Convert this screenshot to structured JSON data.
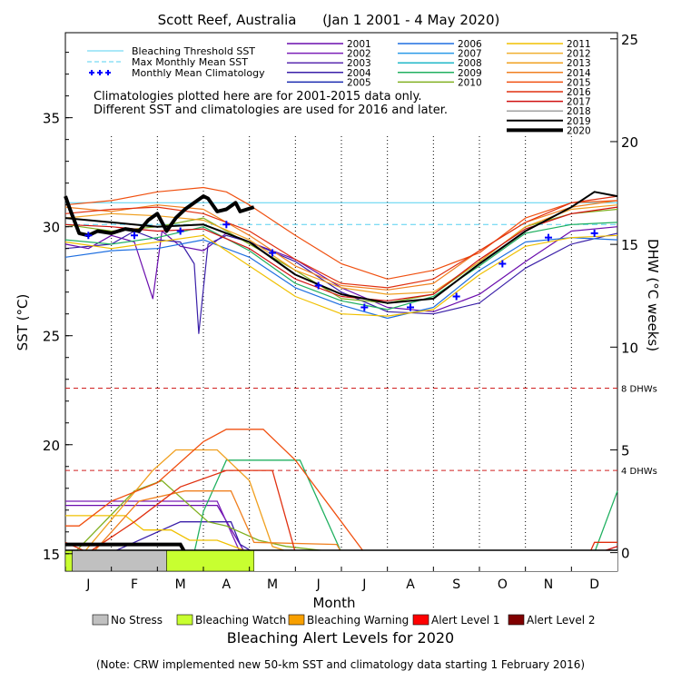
{
  "chart_data": {
    "type": "line",
    "title": "Scott Reef, Australia      (Jan 1 2001 - 4 May 2020)",
    "xlabel": "Month",
    "ylabel_left": "SST (°C)",
    "ylabel_right": "DHW (°C weeks)",
    "x_ticks": [
      "J",
      "F",
      "M",
      "A",
      "M",
      "J",
      "J",
      "A",
      "S",
      "O",
      "N",
      "D"
    ],
    "y_left_ticks": [
      15,
      20,
      25,
      30,
      35
    ],
    "y_left_range": [
      14.2,
      38.9
    ],
    "y_right_ticks": [
      0,
      5,
      10,
      15,
      20,
      25
    ],
    "y_right_range": [
      -0.9,
      25.3
    ],
    "bleaching_threshold_sst": 31.1,
    "max_monthly_mean_sst": 30.1,
    "dhw_lines": [
      {
        "label": "8 DHWs",
        "value": 8
      },
      {
        "label": "4 DHWs",
        "value": 4
      }
    ],
    "climatology_note_1": "Climatologies plotted here are for 2001-2015 data only.",
    "climatology_note_2": "Different SST and climatologies are used for 2016 and later.",
    "legend_refs": [
      {
        "name": "Bleaching Threshold SST",
        "color": "#55d0f0",
        "style": "solid"
      },
      {
        "name": "Max Monthly Mean SST",
        "color": "#55d0f0",
        "style": "dashed"
      },
      {
        "name": "Monthly Mean Climatology",
        "color": "#0000ff",
        "style": "plus"
      }
    ],
    "year_legend": [
      {
        "name": "2001",
        "color": "#6a0dad"
      },
      {
        "name": "2002",
        "color": "#7b1fb8"
      },
      {
        "name": "2003",
        "color": "#5a2bb0"
      },
      {
        "name": "2004",
        "color": "#3a1fa8"
      },
      {
        "name": "2005",
        "color": "#1a2ab0"
      },
      {
        "name": "2006",
        "color": "#1f6fe0"
      },
      {
        "name": "2007",
        "color": "#2a9ae8"
      },
      {
        "name": "2008",
        "color": "#20b8c8"
      },
      {
        "name": "2009",
        "color": "#20b060"
      },
      {
        "name": "2010",
        "color": "#80b020"
      },
      {
        "name": "2011",
        "color": "#f0c000"
      },
      {
        "name": "2012",
        "color": "#f0b030"
      },
      {
        "name": "2013",
        "color": "#f0a020"
      },
      {
        "name": "2014",
        "color": "#f08020"
      },
      {
        "name": "2015",
        "color": "#f05010"
      },
      {
        "name": "2016",
        "color": "#e03010"
      },
      {
        "name": "2017",
        "color": "#d01010"
      },
      {
        "name": "2018",
        "color": "#a0a0a0"
      },
      {
        "name": "2019",
        "color": "#000000"
      },
      {
        "name": "2020",
        "color": "#000000"
      }
    ],
    "climatology": {
      "x": [
        0.5,
        1.5,
        2.5,
        3.5,
        4.5,
        5.5,
        6.5,
        7.5,
        8.5,
        9.5,
        10.5,
        11.5
      ],
      "values": [
        29.6,
        29.6,
        29.8,
        30.1,
        28.8,
        27.3,
        26.3,
        26.3,
        26.8,
        28.3,
        29.5,
        29.7
      ]
    },
    "series": [
      {
        "name": "2001",
        "x": [
          0,
          0.5,
          1,
          1.5,
          1.9,
          2.1,
          2.5,
          3,
          3.5,
          4,
          5,
          6,
          7,
          8,
          9,
          10,
          11,
          12
        ],
        "values": [
          29.2,
          29.0,
          29.6,
          29.3,
          26.7,
          29.8,
          29.1,
          28.9,
          29.7,
          29.3,
          28.5,
          27.2,
          26.3,
          26.1,
          26.9,
          28.4,
          29.8,
          30.0
        ]
      },
      {
        "name": "2004",
        "x": [
          0,
          0.5,
          1,
          1.5,
          2,
          2.5,
          2.8,
          2.9,
          3.1,
          3.5,
          4,
          5,
          6,
          7,
          8,
          9,
          10,
          11,
          12
        ],
        "values": [
          29.0,
          29.1,
          29.2,
          29.8,
          29.4,
          29.3,
          28.3,
          25.1,
          29.2,
          29.6,
          29.3,
          28.4,
          27.0,
          26.1,
          26.0,
          26.5,
          28.1,
          29.2,
          29.7
        ]
      },
      {
        "name": "2006",
        "x": [
          0,
          1,
          2,
          3,
          4,
          5,
          6,
          7,
          8,
          9,
          10,
          11,
          12
        ],
        "values": [
          28.6,
          28.9,
          29.0,
          29.4,
          28.6,
          27.2,
          26.4,
          25.8,
          26.3,
          28.0,
          29.3,
          29.5,
          29.4
        ]
      },
      {
        "name": "2009",
        "x": [
          0,
          1,
          2,
          3,
          4,
          5,
          6,
          7,
          8,
          9,
          10,
          11,
          12
        ],
        "values": [
          29.4,
          29.2,
          29.5,
          30.0,
          28.9,
          27.4,
          26.6,
          26.2,
          26.8,
          28.2,
          29.7,
          30.1,
          30.2
        ]
      },
      {
        "name": "2010",
        "x": [
          0,
          1,
          2,
          3,
          4,
          5,
          6,
          7,
          8,
          9,
          10,
          11,
          12
        ],
        "values": [
          30.1,
          29.8,
          30.0,
          30.4,
          29.2,
          28.0,
          26.7,
          26.5,
          26.9,
          28.4,
          30.0,
          30.6,
          30.8
        ]
      },
      {
        "name": "2011",
        "x": [
          0,
          1,
          2,
          3,
          4,
          5,
          6,
          7,
          8,
          9,
          10,
          11,
          12
        ],
        "values": [
          29.3,
          29.0,
          29.3,
          29.6,
          28.2,
          26.8,
          26.0,
          25.9,
          26.2,
          27.8,
          29.1,
          29.5,
          29.6
        ]
      },
      {
        "name": "2013",
        "x": [
          0,
          1,
          2,
          3,
          4,
          5,
          6,
          7,
          8,
          9,
          10,
          11,
          12
        ],
        "values": [
          30.4,
          30.6,
          30.5,
          30.3,
          29.4,
          28.0,
          27.2,
          26.9,
          27.0,
          28.4,
          30.0,
          30.8,
          31.0
        ]
      },
      {
        "name": "2014",
        "x": [
          0,
          1,
          2,
          3,
          4,
          5,
          6,
          7,
          8,
          9,
          10,
          11,
          12
        ],
        "values": [
          30.9,
          30.7,
          31.0,
          30.8,
          29.6,
          28.2,
          27.3,
          27.1,
          27.4,
          28.9,
          30.2,
          30.9,
          31.2
        ]
      },
      {
        "name": "2015",
        "x": [
          0,
          1,
          2,
          3,
          3.5,
          4,
          5,
          6,
          7,
          8,
          9,
          10,
          11,
          12
        ],
        "values": [
          31.0,
          31.2,
          31.6,
          31.8,
          31.6,
          31.0,
          29.6,
          28.3,
          27.6,
          28.0,
          28.8,
          30.4,
          31.1,
          31.2
        ]
      },
      {
        "name": "2016",
        "x": [
          0,
          1,
          2,
          3,
          4,
          5,
          6,
          7,
          8,
          9,
          10,
          11,
          12
        ],
        "values": [
          30.6,
          30.8,
          30.9,
          30.6,
          29.8,
          28.5,
          27.4,
          27.2,
          27.6,
          28.9,
          30.2,
          31.1,
          31.4
        ]
      },
      {
        "name": "2017",
        "x": [
          0,
          1,
          2,
          3,
          4,
          5,
          6,
          7,
          8,
          9,
          10,
          11,
          12
        ],
        "values": [
          30.1,
          30.0,
          29.8,
          29.9,
          29.0,
          27.6,
          26.8,
          26.6,
          26.9,
          28.5,
          29.9,
          30.6,
          30.9
        ]
      },
      {
        "name": "2019",
        "x": [
          0,
          1,
          2,
          3,
          4,
          5,
          6,
          7,
          8,
          9,
          10,
          11,
          11.5,
          12
        ],
        "values": [
          30.4,
          30.2,
          30.0,
          30.1,
          29.3,
          27.8,
          26.9,
          26.5,
          26.7,
          28.3,
          29.8,
          30.9,
          31.6,
          31.4
        ]
      },
      {
        "name": "2020",
        "x": [
          0,
          0.1,
          0.3,
          0.5,
          0.7,
          1,
          1.3,
          1.6,
          1.8,
          2,
          2.2,
          2.4,
          2.6,
          2.8,
          3,
          3.1,
          3.3,
          3.5,
          3.7,
          3.8,
          4.1
        ],
        "values": [
          31.4,
          30.8,
          29.7,
          29.6,
          29.8,
          29.7,
          29.9,
          29.8,
          30.3,
          30.6,
          29.8,
          30.4,
          30.8,
          31.1,
          31.4,
          31.3,
          30.7,
          30.8,
          31.1,
          30.7,
          30.9
        ]
      }
    ],
    "dhw_series": [
      {
        "name": "2001",
        "x": [
          0,
          0.2,
          2,
          3,
          3.3,
          3.9
        ],
        "values": [
          2.3,
          2.3,
          2.3,
          2.3,
          2.3,
          0
        ]
      },
      {
        "name": "2002",
        "x": [
          0,
          0.3,
          2.2,
          3.3,
          3.8
        ],
        "values": [
          2.5,
          2.5,
          2.5,
          2.5,
          0
        ]
      },
      {
        "name": "2004",
        "x": [
          0,
          1,
          2.5,
          3.6,
          3.8,
          4.1
        ],
        "values": [
          0,
          0,
          1.5,
          1.5,
          0.4,
          0
        ]
      },
      {
        "name": "2009",
        "x": [
          2.8,
          3,
          3.5,
          4.5,
          5.1,
          6,
          11.5,
          12
        ],
        "values": [
          0,
          2,
          4.5,
          4.5,
          4.5,
          0,
          0,
          3
        ]
      },
      {
        "name": "2010",
        "x": [
          0,
          0.2,
          1.5,
          2.1,
          3.1,
          3.5,
          4.2,
          4.8,
          6
        ],
        "values": [
          0,
          0,
          3,
          3.5,
          1.5,
          1.3,
          0.6,
          0.3,
          0
        ]
      },
      {
        "name": "2011",
        "x": [
          0,
          1.3,
          1.7,
          2.3,
          2.7,
          3.3,
          3.9,
          4.1
        ],
        "values": [
          1.8,
          1.8,
          1.1,
          1.1,
          0.6,
          0.6,
          0.1,
          0
        ]
      },
      {
        "name": "2013",
        "x": [
          0,
          0.4,
          1.9,
          2.4,
          3.3,
          4,
          4.5,
          4.9
        ],
        "values": [
          0,
          0,
          4,
          5,
          5,
          3.5,
          0.3,
          0
        ]
      },
      {
        "name": "2014",
        "x": [
          0,
          0.6,
          1.6,
          2.6,
          3.6,
          4.1,
          5.9,
          6
        ],
        "values": [
          0,
          0,
          2.5,
          3,
          3,
          0.5,
          0.4,
          0
        ]
      },
      {
        "name": "2015",
        "x": [
          0,
          0.3,
          1,
          2,
          3,
          3.5,
          4.3,
          5,
          6.5
        ],
        "values": [
          1.3,
          1.3,
          2.5,
          3.4,
          5.4,
          6,
          6,
          4.5,
          0
        ]
      },
      {
        "name": "2016",
        "x": [
          0,
          0.5,
          1.5,
          2.5,
          3.5,
          4.5,
          5,
          11.4,
          11.5,
          12
        ],
        "values": [
          0.5,
          0,
          1.5,
          3.2,
          4,
          4,
          0,
          0,
          0.5,
          0.5
        ]
      },
      {
        "name": "2017",
        "x": [
          0,
          11.6,
          12
        ],
        "values": [
          0,
          0,
          0.3
        ]
      },
      {
        "name": "2019",
        "x": [
          0,
          12
        ],
        "values": [
          0,
          0
        ]
      },
      {
        "name": "2020",
        "x": [
          0,
          2.5,
          2.6
        ],
        "values": [
          0.4,
          0.4,
          0
        ]
      }
    ],
    "alert_bar": {
      "title": "Bleaching Alert Levels for 2020",
      "segments": [
        {
          "level": "Bleaching Watch",
          "x0": 0,
          "x1": 0.15
        },
        {
          "level": "No Stress",
          "x0": 0.15,
          "x1": 2.2
        },
        {
          "level": "Bleaching Watch",
          "x0": 2.2,
          "x1": 4.1
        }
      ]
    },
    "alert_legend": [
      {
        "name": "No Stress",
        "color": "#c0c0c0"
      },
      {
        "name": "Bleaching Watch",
        "color": "#c8ff30"
      },
      {
        "name": "Bleaching Warning",
        "color": "#f8a000"
      },
      {
        "name": "Alert Level 1",
        "color": "#ff0000"
      },
      {
        "name": "Alert Level 2",
        "color": "#800000"
      }
    ],
    "note": "(Note: CRW implemented new 50-km SST and climatology data starting 1 February 2016)"
  }
}
